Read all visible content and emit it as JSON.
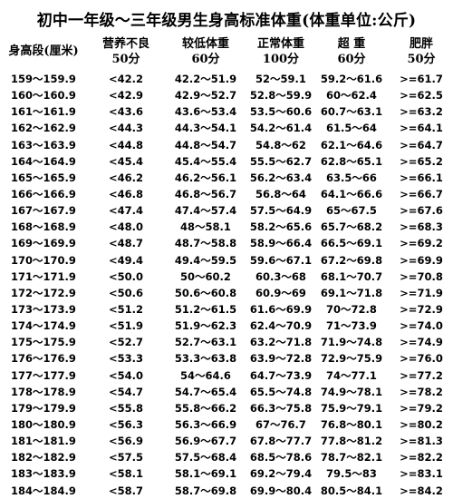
{
  "title": "初中一年级～三年级男生身高标准体重(体重单位:公斤)",
  "header": {
    "height_label": "身高段(厘米)",
    "columns": [
      {
        "name": "营养不良",
        "score": "50分"
      },
      {
        "name": "较低体重",
        "score": "60分"
      },
      {
        "name": "正常体重",
        "score": "100分"
      },
      {
        "name": "超  重",
        "score": "60分"
      },
      {
        "name": "肥胖",
        "score": "50分"
      }
    ]
  },
  "rows": [
    [
      "159～159.9",
      "<42.2",
      "42.2～51.9",
      "52～59.1",
      "59.2～61.6",
      ">=61.7"
    ],
    [
      "160～160.9",
      "<42.9",
      "42.9～52.7",
      "52.8～59.9",
      "60～62.4",
      ">=62.5"
    ],
    [
      "161～161.9",
      "<43.6",
      "43.6～53.4",
      "53.5～60.6",
      "60.7～63.1",
      ">=63.2"
    ],
    [
      "162～162.9",
      "<44.3",
      "44.3～54.1",
      "54.2～61.4",
      "61.5～64",
      ">=64.1"
    ],
    [
      "163～163.9",
      "<44.8",
      "44.8～54.7",
      "54.8～62",
      "62.1～64.6",
      ">=64.7"
    ],
    [
      "164～164.9",
      "<45.4",
      "45.4～55.4",
      "55.5～62.7",
      "62.8～65.1",
      ">=65.2"
    ],
    [
      "165～165.9",
      "<46.2",
      "46.2～56.1",
      "56.2～63.4",
      "63.5～66",
      ">=66.1"
    ],
    [
      "166～166.9",
      "<46.8",
      "46.8～56.7",
      "56.8～64",
      "64.1～66.6",
      ">=66.7"
    ],
    [
      "167～167.9",
      "<47.4",
      "47.4～57.4",
      "57.5～64.9",
      "65～67.5",
      ">=67.6"
    ],
    [
      "168～168.9",
      "<48.0",
      "48～58.1",
      "58.2～65.6",
      "65.7～68.2",
      ">=68.3"
    ],
    [
      "169～169.9",
      "<48.7",
      "48.7～58.8",
      "58.9～66.4",
      "66.5～69.1",
      ">=69.2"
    ],
    [
      "170～170.9",
      "<49.4",
      "49.4～59.5",
      "59.6～67.1",
      "67.2～69.8",
      ">=69.9"
    ],
    [
      "171～171.9",
      "<50.0",
      "50～60.2",
      "60.3～68",
      "68.1～70.7",
      ">=70.8"
    ],
    [
      "172～172.9",
      "<50.6",
      "50.6～60.8",
      "60.9～69",
      "69.1～71.8",
      ">=71.9"
    ],
    [
      "173～173.9",
      "<51.2",
      "51.2～61.5",
      "61.6～69.9",
      "70～72.8",
      ">=72.9"
    ],
    [
      "174～174.9",
      "<51.9",
      "51.9～62.3",
      "62.4～70.9",
      "71～73.9",
      ">=74.0"
    ],
    [
      "175～175.9",
      "<52.7",
      "52.7～63.1",
      "63.2～71.8",
      "71.9～74.8",
      ">=74.9"
    ],
    [
      "176～176.9",
      "<53.3",
      "53.3～63.8",
      "63.9～72.8",
      "72.9～75.9",
      ">=76.0"
    ],
    [
      "177～177.9",
      "<54.0",
      "54～64.6",
      "64.7～73.9",
      "74～77.1",
      ">=77.2"
    ],
    [
      "178～178.9",
      "<54.7",
      "54.7～65.4",
      "65.5～74.8",
      "74.9～78.1",
      ">=78.2"
    ],
    [
      "179～179.9",
      "<55.8",
      "55.8～66.2",
      "66.3～75.8",
      "75.9～79.1",
      ">=79.2"
    ],
    [
      "180～180.9",
      "<56.3",
      "56.3～66.9",
      "67～76.7",
      "76.8～80.1",
      ">=80.2"
    ],
    [
      "181～181.9",
      "<56.9",
      "56.9～67.7",
      "67.8～77.7",
      "77.8～81.2",
      ">=81.3"
    ],
    [
      "182～182.9",
      "<57.5",
      "57.5～68.4",
      "68.5～78.6",
      "78.7～82.1",
      ">=82.2"
    ],
    [
      "183～183.9",
      "<58.1",
      "58.1～69.1",
      "69.2～79.4",
      "79.5～83",
      ">=83.1"
    ],
    [
      "184～184.9",
      "<58.7",
      "58.7～69.8",
      "69.9～80.4",
      "80.5～84.1",
      ">=84.2"
    ]
  ]
}
